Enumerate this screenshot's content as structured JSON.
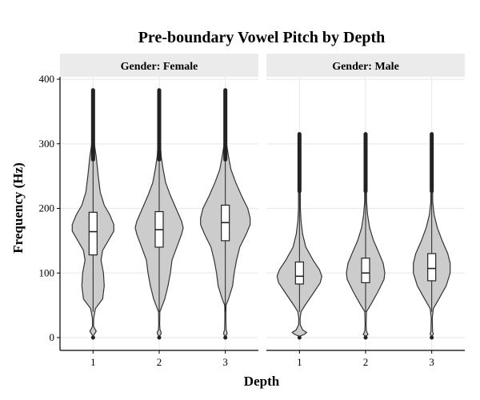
{
  "chart_data": {
    "type": "violin",
    "title": "Pre-boundary Vowel Pitch by Depth",
    "xlabel": "Depth",
    "ylabel": "Frequency (Hz)",
    "ylim": [
      0,
      400
    ],
    "y_ticks": [
      0,
      100,
      200,
      300,
      400
    ],
    "categories": [
      "1",
      "2",
      "3"
    ],
    "grid": true,
    "colors": {
      "violin_fill": "#cccccc",
      "violin_stroke": "#333333",
      "box_fill": "#ffffff",
      "strip_fill": "#ebebeb",
      "grid": "#ebebeb"
    },
    "panels": [
      {
        "strip": "Gender: Female",
        "groups": [
          {
            "x": "1",
            "min": 0,
            "q1": 128,
            "median": 164,
            "q3": 194,
            "max": 383
          },
          {
            "x": "2",
            "min": 0,
            "q1": 140,
            "median": 167,
            "q3": 195,
            "max": 383
          },
          {
            "x": "3",
            "min": 0,
            "q1": 150,
            "median": 178,
            "q3": 205,
            "max": 383
          }
        ]
      },
      {
        "strip": "Gender: Male",
        "groups": [
          {
            "x": "1",
            "min": 0,
            "q1": 83,
            "median": 95,
            "q3": 117,
            "max": 315
          },
          {
            "x": "2",
            "min": 0,
            "q1": 85,
            "median": 100,
            "q3": 123,
            "max": 315
          },
          {
            "x": "3",
            "min": 0,
            "q1": 88,
            "median": 107,
            "q3": 130,
            "max": 315
          }
        ]
      }
    ]
  }
}
